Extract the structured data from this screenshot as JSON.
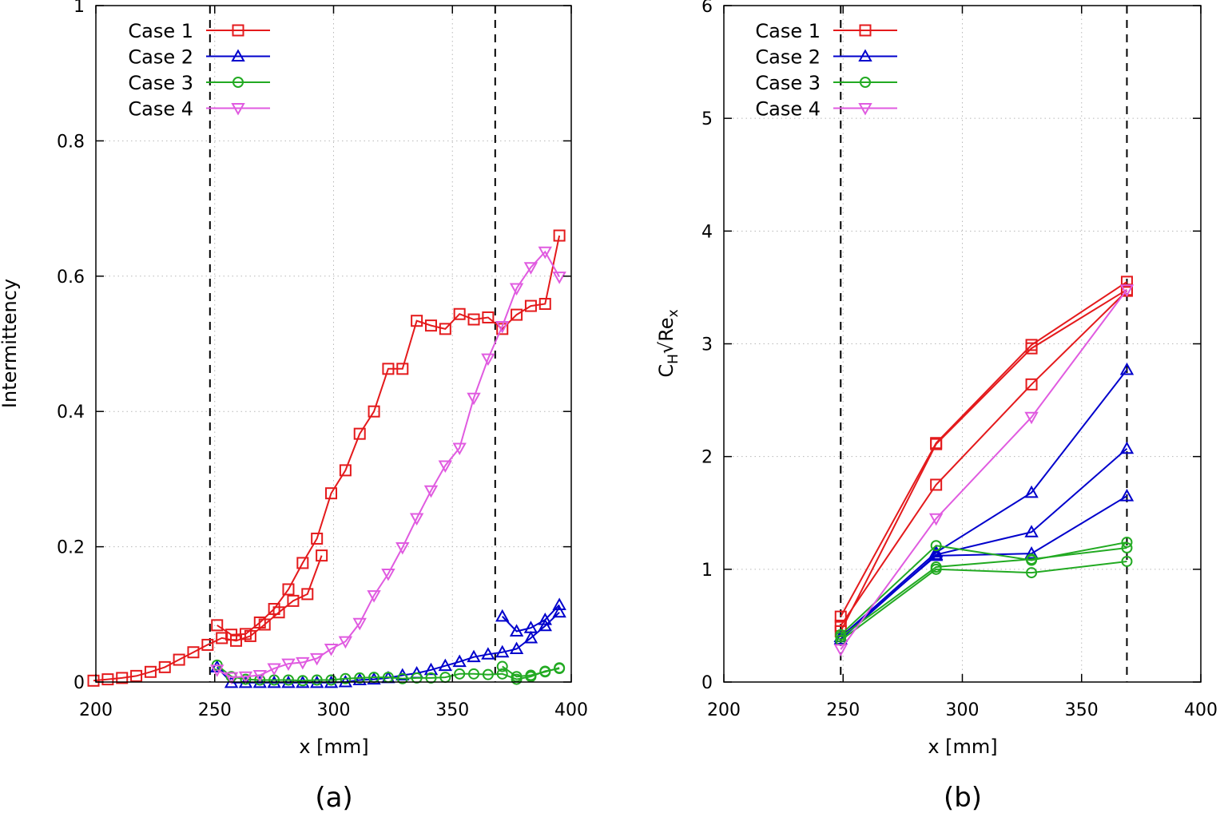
{
  "chart_data": [
    {
      "type": "line",
      "panel_label": "(a)",
      "xlabel": "x [mm]",
      "ylabel": "Intermittency",
      "xlim": [
        200,
        400
      ],
      "ylim": [
        0,
        1
      ],
      "x_ticks": [
        "200",
        "250",
        "300",
        "350",
        "400"
      ],
      "y_ticks": [
        "0",
        "0.2",
        "0.4",
        "0.6",
        "0.8",
        "1"
      ],
      "grid": true,
      "legend_position": "top-left",
      "vlines_dashed": [
        248,
        368
      ],
      "series": [
        {
          "name": "Case 1",
          "color": "#e41a1c",
          "marker": "square",
          "segments": [
            [
              [
                199,
                0.002
              ],
              [
                205,
                0.004
              ],
              [
                211,
                0.006
              ],
              [
                217,
                0.009
              ],
              [
                223,
                0.015
              ],
              [
                229,
                0.022
              ],
              [
                235,
                0.033
              ],
              [
                241,
                0.044
              ],
              [
                247,
                0.055
              ],
              [
                253,
                0.065
              ],
              [
                259,
                0.061
              ],
              [
                265,
                0.068
              ],
              [
                271,
                0.085
              ],
              [
                277,
                0.103
              ],
              [
                283,
                0.12
              ],
              [
                289,
                0.13
              ],
              [
                295,
                0.187
              ]
            ],
            [
              [
                251,
                0.084
              ],
              [
                257,
                0.07
              ],
              [
                263,
                0.071
              ],
              [
                269,
                0.088
              ],
              [
                275,
                0.108
              ],
              [
                281,
                0.137
              ],
              [
                287,
                0.176
              ],
              [
                293,
                0.212
              ],
              [
                299,
                0.279
              ],
              [
                305,
                0.313
              ],
              [
                311,
                0.367
              ],
              [
                317,
                0.4
              ],
              [
                323,
                0.463
              ],
              [
                329,
                0.463
              ],
              [
                335,
                0.534
              ],
              [
                341,
                0.527
              ],
              [
                347,
                0.522
              ],
              [
                353,
                0.544
              ],
              [
                359,
                0.536
              ],
              [
                365,
                0.539
              ],
              [
                371,
                0.522
              ],
              [
                377,
                0.543
              ],
              [
                383,
                0.556
              ],
              [
                389,
                0.559
              ],
              [
                395,
                0.66
              ]
            ]
          ]
        },
        {
          "name": "Case 2",
          "color": "#0000cc",
          "marker": "triangle-up",
          "segments": [
            [
              [
                251,
                0.022
              ],
              [
                257,
                -0.001
              ],
              [
                263,
                -0.001
              ],
              [
                269,
                -0.001
              ],
              [
                275,
                -0.001
              ],
              [
                281,
                -0.001
              ],
              [
                287,
                -0.001
              ],
              [
                293,
                -0.001
              ],
              [
                299,
                -0.001
              ],
              [
                305,
                0.0
              ],
              [
                311,
                0.003
              ],
              [
                317,
                0.004
              ],
              [
                323,
                0.006
              ],
              [
                329,
                0.01
              ],
              [
                335,
                0.013
              ],
              [
                341,
                0.018
              ],
              [
                347,
                0.024
              ],
              [
                353,
                0.03
              ],
              [
                359,
                0.037
              ],
              [
                365,
                0.041
              ],
              [
                371,
                0.044
              ],
              [
                377,
                0.049
              ],
              [
                383,
                0.065
              ],
              [
                389,
                0.083
              ],
              [
                395,
                0.103
              ]
            ],
            [
              [
                371,
                0.097
              ],
              [
                377,
                0.075
              ],
              [
                383,
                0.08
              ],
              [
                389,
                0.092
              ],
              [
                395,
                0.114
              ]
            ]
          ]
        },
        {
          "name": "Case 3",
          "color": "#22aa22",
          "marker": "circle",
          "segments": [
            [
              [
                251,
                0.025
              ],
              [
                257,
                0.008
              ],
              [
                263,
                0.004
              ],
              [
                269,
                0.003
              ],
              [
                275,
                0.003
              ],
              [
                281,
                0.003
              ],
              [
                287,
                0.002
              ],
              [
                293,
                0.003
              ],
              [
                299,
                0.003
              ],
              [
                305,
                0.005
              ],
              [
                311,
                0.006
              ],
              [
                317,
                0.007
              ],
              [
                323,
                0.007
              ],
              [
                329,
                0.005
              ],
              [
                335,
                0.006
              ],
              [
                341,
                0.006
              ],
              [
                347,
                0.007
              ],
              [
                353,
                0.012
              ],
              [
                359,
                0.012
              ],
              [
                365,
                0.011
              ],
              [
                371,
                0.012
              ],
              [
                377,
                0.004
              ],
              [
                383,
                0.008
              ],
              [
                389,
                0.016
              ],
              [
                395,
                0.02
              ]
            ],
            [
              [
                371,
                0.023
              ],
              [
                377,
                0.008
              ],
              [
                383,
                0.01
              ],
              [
                389,
                0.015
              ],
              [
                395,
                0.021
              ]
            ]
          ]
        },
        {
          "name": "Case 4",
          "color": "#e05be0",
          "marker": "triangle-down",
          "segments": [
            [
              [
                251,
                0.018
              ],
              [
                257,
                0.007
              ],
              [
                263,
                0.008
              ],
              [
                269,
                0.01
              ],
              [
                275,
                0.02
              ],
              [
                281,
                0.027
              ],
              [
                287,
                0.029
              ],
              [
                293,
                0.035
              ],
              [
                299,
                0.049
              ],
              [
                305,
                0.06
              ],
              [
                311,
                0.087
              ],
              [
                317,
                0.128
              ],
              [
                323,
                0.16
              ],
              [
                329,
                0.199
              ],
              [
                335,
                0.242
              ],
              [
                341,
                0.283
              ],
              [
                347,
                0.32
              ],
              [
                353,
                0.346
              ],
              [
                359,
                0.42
              ],
              [
                365,
                0.478
              ],
              [
                371,
                0.526
              ],
              [
                377,
                0.582
              ],
              [
                383,
                0.613
              ],
              [
                389,
                0.636
              ],
              [
                395,
                0.599
              ]
            ]
          ]
        }
      ]
    },
    {
      "type": "line",
      "panel_label": "(b)",
      "xlabel": "x [mm]",
      "ylabel": "C_H√Re_x",
      "ylabel_parts": {
        "c": "C",
        "sub1": "H",
        "mid": "√Re",
        "sub2": "x"
      },
      "xlim": [
        200,
        400
      ],
      "ylim": [
        0,
        6
      ],
      "x_ticks": [
        "200",
        "250",
        "300",
        "350",
        "400"
      ],
      "y_ticks": [
        "0",
        "1",
        "2",
        "3",
        "4",
        "5",
        "6"
      ],
      "grid": true,
      "legend_position": "top-left",
      "vlines_dashed": [
        249,
        369
      ],
      "series": [
        {
          "name": "Case 1",
          "color": "#e41a1c",
          "marker": "square",
          "segments": [
            [
              [
                249,
                0.58
              ],
              [
                289,
                2.12
              ],
              [
                329,
                2.99
              ],
              [
                369,
                3.55
              ]
            ],
            [
              [
                249,
                0.5
              ],
              [
                289,
                1.75
              ],
              [
                329,
                2.64
              ],
              [
                369,
                3.47
              ]
            ],
            [
              [
                249,
                0.45
              ],
              [
                289,
                2.11
              ],
              [
                329,
                2.96
              ],
              [
                369,
                3.48
              ]
            ]
          ]
        },
        {
          "name": "Case 2",
          "color": "#0000cc",
          "marker": "triangle-up",
          "segments": [
            [
              [
                249,
                0.4
              ],
              [
                289,
                1.15
              ],
              [
                329,
                1.68
              ],
              [
                369,
                2.77
              ]
            ],
            [
              [
                249,
                0.38
              ],
              [
                289,
                1.13
              ],
              [
                329,
                1.33
              ],
              [
                369,
                2.07
              ]
            ],
            [
              [
                249,
                0.4
              ],
              [
                289,
                1.12
              ],
              [
                329,
                1.14
              ],
              [
                369,
                1.65
              ]
            ]
          ]
        },
        {
          "name": "Case 3",
          "color": "#22aa22",
          "marker": "circle",
          "segments": [
            [
              [
                249,
                0.42
              ],
              [
                289,
                1.21
              ],
              [
                329,
                1.08
              ],
              [
                369,
                1.24
              ]
            ],
            [
              [
                249,
                0.4
              ],
              [
                289,
                1.02
              ],
              [
                329,
                1.09
              ],
              [
                369,
                1.19
              ]
            ],
            [
              [
                249,
                0.37
              ],
              [
                289,
                1.0
              ],
              [
                329,
                0.97
              ],
              [
                369,
                1.07
              ]
            ]
          ]
        },
        {
          "name": "Case 4",
          "color": "#e05be0",
          "marker": "triangle-down",
          "segments": [
            [
              [
                249,
                0.29
              ],
              [
                289,
                1.45
              ],
              [
                329,
                2.35
              ],
              [
                369,
                3.48
              ]
            ]
          ]
        }
      ]
    }
  ]
}
